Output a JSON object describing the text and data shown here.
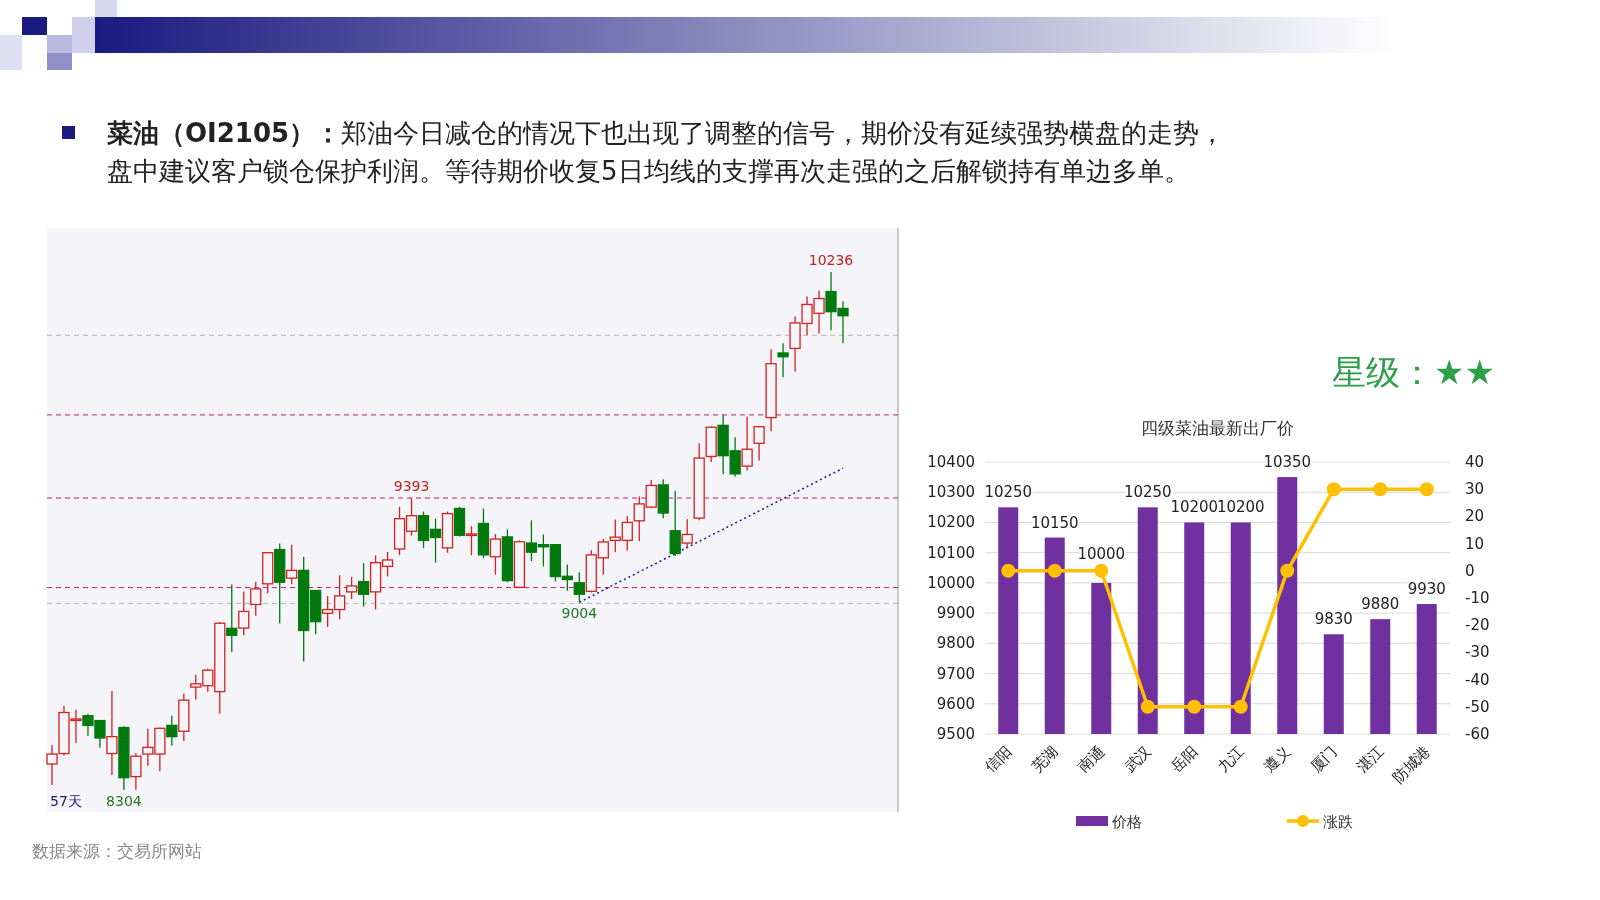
{
  "chart_data": [
    {
      "type": "candlestick",
      "title": "**菜油（OI2105）：**郑油今日减仓的情况下也出现了调整的信号，期价没有延续强势横盘的走势，盘中建议客户锁仓保护利润。等待期价收复5日均线的支撑再次走强的之后解锁持有单边多单。",
      "categories": [
        null,
        null,
        null,
        null,
        null,
        null,
        null,
        null,
        null,
        null,
        null,
        null,
        null,
        null,
        null,
        null,
        null,
        null,
        null,
        null,
        null,
        null,
        null,
        null,
        null,
        null,
        null,
        null,
        null,
        null,
        null,
        null,
        null,
        null,
        null,
        null,
        null,
        null,
        null,
        null,
        null,
        null,
        null,
        null,
        null,
        null,
        null,
        null,
        null,
        null,
        null,
        null,
        null,
        null,
        null,
        null,
        null,
        null,
        null,
        null,
        null,
        null,
        null,
        null,
        null,
        null,
        null
      ],
      "ohlc": [
        [
          8401,
          8472,
          8323,
          8438
        ],
        [
          8440,
          8617,
          8433,
          8593
        ],
        [
          8564,
          8603,
          8479,
          8569
        ],
        [
          8581,
          8588,
          8506,
          8545
        ],
        [
          8563,
          8563,
          8462,
          8498
        ],
        [
          8440,
          8673,
          8360,
          8503
        ],
        [
          8537,
          8542,
          8304,
          8350
        ],
        [
          8354,
          8442,
          8305,
          8430
        ],
        [
          8438,
          8532,
          8394,
          8463
        ],
        [
          8438,
          8537,
          8374,
          8534
        ],
        [
          8545,
          8581,
          8469,
          8503
        ],
        [
          8523,
          8664,
          8487,
          8639
        ],
        [
          8688,
          8734,
          8642,
          8700
        ],
        [
          8693,
          8756,
          8670,
          8751
        ],
        [
          8671,
          8931,
          8588,
          8926
        ],
        [
          8907,
          9070,
          8819,
          8881
        ],
        [
          8908,
          9044,
          8881,
          8970
        ],
        [
          8996,
          9081,
          8954,
          9054
        ],
        [
          9073,
          9192,
          9038,
          9189
        ],
        [
          9201,
          9223,
          8925,
          9079
        ],
        [
          9094,
          9219,
          9071,
          9123
        ],
        [
          9123,
          9174,
          8783,
          8899
        ],
        [
          9048,
          9048,
          8885,
          8932
        ],
        [
          8963,
          9028,
          8912,
          8977
        ],
        [
          8977,
          9105,
          8941,
          9028
        ],
        [
          9043,
          9099,
          9016,
          9065
        ],
        [
          9081,
          9150,
          8988,
          9034
        ],
        [
          9043,
          9179,
          8977,
          9152
        ],
        [
          9138,
          9192,
          9101,
          9162
        ],
        [
          9203,
          9360,
          9180,
          9316
        ],
        [
          9269,
          9393,
          9253,
          9327
        ],
        [
          9327,
          9342,
          9206,
          9235
        ],
        [
          9276,
          9316,
          9152,
          9246
        ],
        [
          9207,
          9342,
          9189,
          9335
        ],
        [
          9354,
          9360,
          9250,
          9254
        ],
        [
          9254,
          9288,
          9180,
          9259
        ],
        [
          9298,
          9354,
          9169,
          9181
        ],
        [
          9174,
          9259,
          9107,
          9240
        ],
        [
          9248,
          9276,
          9079,
          9085
        ],
        [
          9060,
          9235,
          9060,
          9230
        ],
        [
          9225,
          9310,
          9158,
          9191
        ],
        [
          9219,
          9257,
          9138,
          9211
        ],
        [
          9219,
          9219,
          9082,
          9100
        ],
        [
          9101,
          9145,
          9047,
          9089
        ],
        [
          9077,
          9116,
          9004,
          9034
        ],
        [
          9045,
          9198,
          9041,
          9181
        ],
        [
          9170,
          9241,
          9107,
          9229
        ],
        [
          9235,
          9313,
          9191,
          9247
        ],
        [
          9235,
          9326,
          9196,
          9302
        ],
        [
          9308,
          9399,
          9232,
          9371
        ],
        [
          9359,
          9460,
          9355,
          9440
        ],
        [
          9442,
          9463,
          9318,
          9337
        ],
        [
          9271,
          9420,
          9177,
          9186
        ],
        [
          9225,
          9314,
          9205,
          9257
        ],
        [
          9318,
          9597,
          9310,
          9542
        ],
        [
          9548,
          9660,
          9527,
          9657
        ],
        [
          9664,
          9702,
          9482,
          9551
        ],
        [
          9569,
          9620,
          9472,
          9483
        ],
        [
          9512,
          9697,
          9496,
          9575
        ],
        [
          9597,
          9663,
          9533,
          9659
        ],
        [
          9693,
          9948,
          9643,
          9894
        ],
        [
          9934,
          9970,
          9843,
          9920
        ],
        [
          9951,
          10071,
          9864,
          10046
        ],
        [
          10044,
          10145,
          10001,
          10115
        ],
        [
          10082,
          10167,
          10007,
          10137
        ],
        [
          10163,
          10236,
          10019,
          10088
        ],
        [
          10100,
          10127,
          9970,
          10073
        ]
      ],
      "series": [
        {
          "type": "line",
          "color": "#1a1aa0",
          "line_style": "dotted",
          "values": [
            null,
            null,
            null,
            null,
            null,
            null,
            null,
            null,
            null,
            null,
            null,
            null,
            null,
            null,
            null,
            null,
            null,
            null,
            null,
            null,
            null,
            null,
            null,
            null,
            null,
            null,
            null,
            null,
            null,
            null,
            null,
            null,
            null,
            null,
            null,
            null,
            null,
            null,
            null,
            null,
            null,
            null,
            null,
            null,
            9004,
            null,
            null,
            null,
            null,
            null,
            null,
            null,
            null,
            null,
            null,
            null,
            null,
            null,
            null,
            null,
            null,
            null,
            null,
            null,
            null,
            null,
            9504
          ]
        }
      ],
      "ref_lines": [
        {
          "axis": "y",
          "value": 10000,
          "color": "#b4b4b4",
          "line_style": "dashed"
        },
        {
          "axis": "y",
          "value": 9000,
          "color": "#b4b4b4",
          "line_style": "dashed"
        },
        {
          "axis": "y",
          "value": 9703,
          "color": "#c0187a",
          "line_style": "dashed"
        },
        {
          "axis": "y",
          "value": 9393,
          "color": "#c0187a",
          "line_style": "dashed"
        },
        {
          "axis": "y",
          "value": 9059,
          "color": "#c0187a",
          "line_style": "dashed"
        }
      ],
      "annotations": [
        {
          "text": "10236",
          "y": 10236
        },
        {
          "text": "9393",
          "y": 9393
        },
        {
          "text": "9004",
          "y": 9004
        },
        {
          "text": "8304",
          "y": 8304
        },
        "57天",
        "数据来源：交易所网站"
      ]
    },
    {
      "type": "bar",
      "title": "四级菜油最新出厂价",
      "categories": [
        "信阳",
        "芜湖",
        "南通",
        "武汉",
        "岳阳",
        "九江",
        "遵义",
        "厦门",
        "湛江",
        "防城港"
      ],
      "series": [
        {
          "name": "价格",
          "type": "bar",
          "color": "#7030a0",
          "values": [
            10250,
            10150,
            10000,
            10250,
            10200,
            10200,
            10350,
            9830,
            9880,
            9930
          ],
          "value_labels": [
            "10250",
            "10150",
            "10000",
            "10250",
            "10200",
            "10200",
            "10350",
            "9830",
            "9880",
            "9930"
          ]
        },
        {
          "name": "涨跌",
          "type": "line",
          "axis": "y2",
          "color": "#ffc000",
          "marker": "circle",
          "values": [
            0,
            0,
            0,
            -50,
            -50,
            -50,
            0,
            30,
            30,
            30
          ]
        }
      ],
      "ylim": [
        9500,
        10400
      ],
      "yticks": [
        9500,
        9600,
        9700,
        9800,
        9900,
        10000,
        10100,
        10200,
        10300,
        10400
      ],
      "y2lim": [
        -60,
        40
      ],
      "y2ticks": [
        -60,
        -50,
        -40,
        -30,
        -20,
        -10,
        0,
        10,
        20,
        30,
        40
      ],
      "grid": "y",
      "legend": "bottom",
      "annotations": [
        "星级：★★"
      ]
    }
  ]
}
